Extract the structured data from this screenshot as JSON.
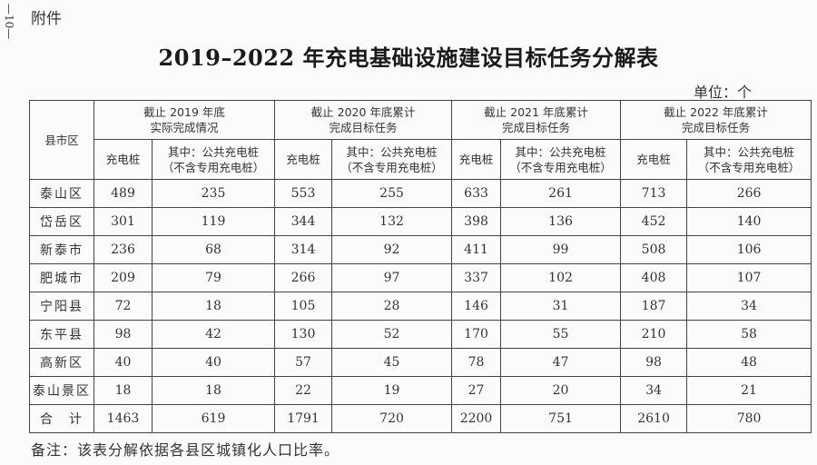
{
  "page_number": "—10—",
  "attachment_label": "附件",
  "title": "2019–2022 年充电基础设施建设目标任务分解表",
  "unit": "单位：个",
  "table": {
    "region_header": "县市区",
    "groups": [
      {
        "line1": "截止 2019 年底",
        "line2": "实际完成情况"
      },
      {
        "line1": "截止 2020 年底累计",
        "line2": "完成目标任务"
      },
      {
        "line1": "截止 2021 年底累计",
        "line2": "完成目标任务"
      },
      {
        "line1": "截止 2022 年底累计",
        "line2": "完成目标任务"
      }
    ],
    "sub_total": "充电桩",
    "sub_public_line1": "其中：公共充电桩",
    "sub_public_line2": "（不含专用充电桩）",
    "rows": [
      {
        "name": "泰山区",
        "v": [
          "489",
          "235",
          "553",
          "255",
          "633",
          "261",
          "713",
          "266"
        ]
      },
      {
        "name": "岱岳区",
        "v": [
          "301",
          "119",
          "344",
          "132",
          "398",
          "136",
          "452",
          "140"
        ]
      },
      {
        "name": "新泰市",
        "v": [
          "236",
          "68",
          "314",
          "92",
          "411",
          "99",
          "508",
          "106"
        ]
      },
      {
        "name": "肥城市",
        "v": [
          "209",
          "79",
          "266",
          "97",
          "337",
          "102",
          "408",
          "107"
        ]
      },
      {
        "name": "宁阳县",
        "v": [
          "72",
          "18",
          "105",
          "28",
          "146",
          "31",
          "187",
          "34"
        ]
      },
      {
        "name": "东平县",
        "v": [
          "98",
          "42",
          "130",
          "52",
          "170",
          "55",
          "210",
          "58"
        ]
      },
      {
        "name": "高新区",
        "v": [
          "40",
          "40",
          "57",
          "45",
          "78",
          "47",
          "98",
          "48"
        ]
      },
      {
        "name": "泰山景区",
        "v": [
          "18",
          "18",
          "22",
          "19",
          "27",
          "20",
          "34",
          "21"
        ]
      },
      {
        "name": "合　计",
        "v": [
          "1463",
          "619",
          "1791",
          "720",
          "2200",
          "751",
          "2610",
          "780"
        ]
      }
    ]
  },
  "note": "备注：该表分解依据各县区城镇化人口比率。"
}
